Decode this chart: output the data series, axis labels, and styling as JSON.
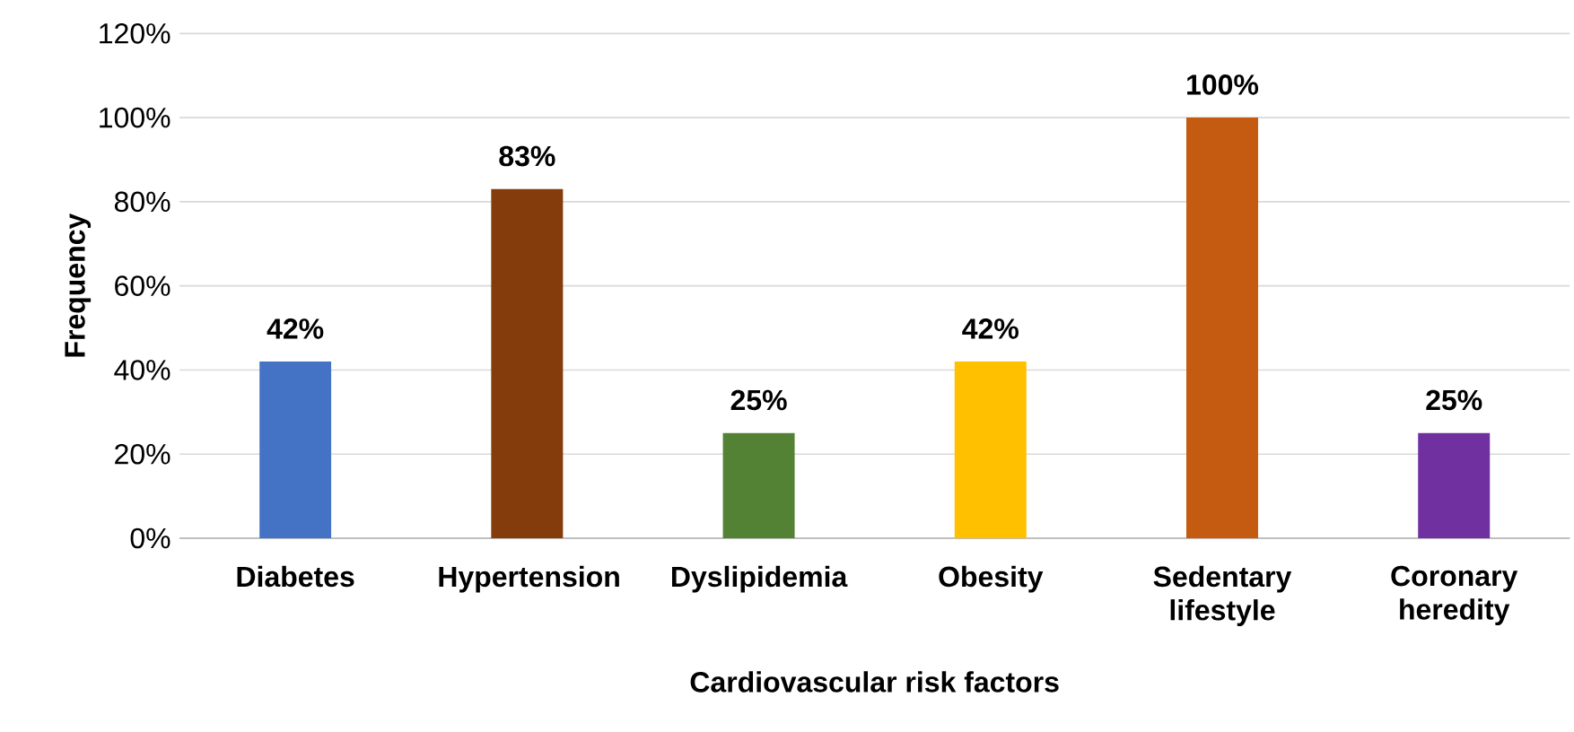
{
  "chart_data": {
    "type": "bar",
    "xlabel": "Cardiovascular risk factors",
    "ylabel": "Frequency",
    "categories": [
      "Diabetes",
      "Hypertension",
      "Dyslipidemia",
      "Obesity",
      "Sedentary lifestyle",
      "Coronary heredity"
    ],
    "values": [
      42,
      83,
      25,
      42,
      100,
      25
    ],
    "colors": [
      "#4472c4",
      "#843c0c",
      "#548235",
      "#ffc000",
      "#c55a11",
      "#7030a0"
    ],
    "value_labels": [
      "42%",
      "83%",
      "25%",
      "42%",
      "100%",
      "25%"
    ],
    "ylim": [
      0,
      120
    ],
    "yticks": [
      {
        "value": 0,
        "label": "0%"
      },
      {
        "value": 20,
        "label": "20%"
      },
      {
        "value": 40,
        "label": "40%"
      },
      {
        "value": 60,
        "label": "60%"
      },
      {
        "value": 80,
        "label": "80%"
      },
      {
        "value": 100,
        "label": "100%"
      },
      {
        "value": 120,
        "label": "120%"
      }
    ],
    "grid": "y"
  }
}
